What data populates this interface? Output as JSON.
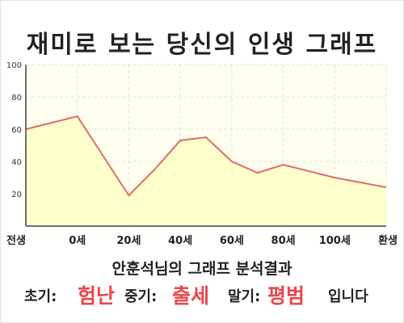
{
  "title": "재미로 보는 당신의 인생 그래프",
  "subtitle": "안훈석님의 그래프 분석결과",
  "result": {
    "early_label": "초기:",
    "early_value": "험난",
    "middle_label": "중기:",
    "middle_value": "출세",
    "late_label": "말기:",
    "late_value": "평범",
    "ending": "입니다"
  },
  "colors": {
    "line": "#e06b6b",
    "fill": "#ffffc8",
    "plot_background": "#fffff0",
    "highlight_text": "#e8474e"
  },
  "chart_data": {
    "type": "area",
    "x_categories": [
      "전생",
      "0세",
      "20세",
      "40세",
      "60세",
      "80세",
      "100세",
      "환생"
    ],
    "y_ticks": [
      20,
      40,
      60,
      80,
      100
    ],
    "ylim": [
      0,
      100
    ],
    "grid": true,
    "points": [
      {
        "x": "전생",
        "y": 60
      },
      {
        "x": "0세",
        "y": 68
      },
      {
        "x": "20세",
        "y": 19
      },
      {
        "x": "30세",
        "y": 35
      },
      {
        "x": "40세",
        "y": 53
      },
      {
        "x": "50세",
        "y": 55
      },
      {
        "x": "60세",
        "y": 40
      },
      {
        "x": "70세",
        "y": 33
      },
      {
        "x": "80세",
        "y": 38
      },
      {
        "x": "100세",
        "y": 30
      },
      {
        "x": "환생",
        "y": 24
      }
    ]
  }
}
